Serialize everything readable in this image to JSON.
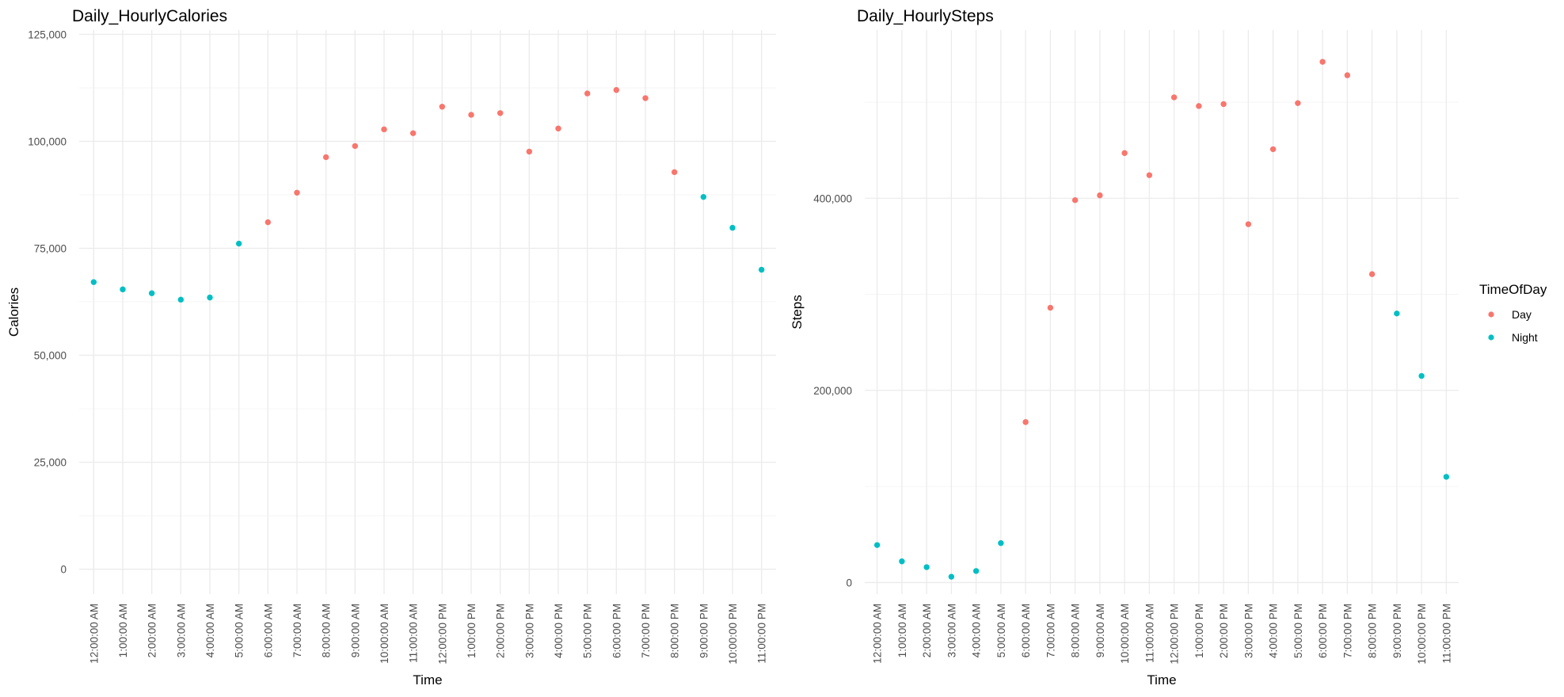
{
  "colors": {
    "Day": "#F8766D",
    "Night": "#00BFC4"
  },
  "legend": {
    "title": "TimeOfDay",
    "items": [
      {
        "label": "Day",
        "color": "#F8766D"
      },
      {
        "label": "Night",
        "color": "#00BFC4"
      }
    ]
  },
  "chart_data": [
    {
      "type": "scatter",
      "title": "Daily_HourlyCalories",
      "xlabel": "Time",
      "ylabel": "Calories",
      "categories": [
        "12:00:00 AM",
        "1:00:00 AM",
        "2:00:00 AM",
        "3:00:00 AM",
        "4:00:00 AM",
        "5:00:00 AM",
        "6:00:00 AM",
        "7:00:00 AM",
        "8:00:00 AM",
        "9:00:00 AM",
        "10:00:00 AM",
        "11:00:00 AM",
        "12:00:00 PM",
        "1:00:00 PM",
        "2:00:00 PM",
        "3:00:00 PM",
        "4:00:00 PM",
        "5:00:00 PM",
        "6:00:00 PM",
        "7:00:00 PM",
        "8:00:00 PM",
        "9:00:00 PM",
        "10:00:00 PM",
        "11:00:00 PM"
      ],
      "values": [
        67100,
        65400,
        64500,
        63000,
        63500,
        76100,
        81100,
        88000,
        96300,
        98900,
        102800,
        101900,
        108100,
        106200,
        106600,
        97600,
        103000,
        111200,
        112000,
        110100,
        92800,
        87000,
        79800,
        70000
      ],
      "groups": [
        "Night",
        "Night",
        "Night",
        "Night",
        "Night",
        "Night",
        "Day",
        "Day",
        "Day",
        "Day",
        "Day",
        "Day",
        "Day",
        "Day",
        "Day",
        "Day",
        "Day",
        "Day",
        "Day",
        "Day",
        "Day",
        "Night",
        "Night",
        "Night"
      ],
      "ylim": [
        -5800,
        126000
      ],
      "yticks": [
        0,
        25000,
        50000,
        75000,
        100000,
        125000
      ],
      "ytick_labels": [
        "0",
        "25,000",
        "50,000",
        "75,000",
        "100,000",
        "125,000"
      ],
      "grid": true,
      "legend": "none"
    },
    {
      "type": "scatter",
      "title": "Daily_HourlySteps",
      "xlabel": "Time",
      "ylabel": "Steps",
      "categories": [
        "12:00:00 AM",
        "1:00:00 AM",
        "2:00:00 AM",
        "3:00:00 AM",
        "4:00:00 AM",
        "5:00:00 AM",
        "6:00:00 AM",
        "7:00:00 AM",
        "8:00:00 AM",
        "9:00:00 AM",
        "10:00:00 AM",
        "11:00:00 AM",
        "12:00:00 PM",
        "1:00:00 PM",
        "2:00:00 PM",
        "3:00:00 PM",
        "4:00:00 PM",
        "5:00:00 PM",
        "6:00:00 PM",
        "7:00:00 PM",
        "8:00:00 PM",
        "9:00:00 PM",
        "10:00:00 PM",
        "11:00:00 PM"
      ],
      "values": [
        39000,
        22000,
        16000,
        6000,
        12000,
        41000,
        167000,
        286000,
        398000,
        403000,
        447000,
        424000,
        505000,
        496000,
        498000,
        373000,
        451000,
        499000,
        542000,
        528000,
        321000,
        280000,
        215000,
        110000
      ],
      "groups": [
        "Night",
        "Night",
        "Night",
        "Night",
        "Night",
        "Night",
        "Day",
        "Day",
        "Day",
        "Day",
        "Day",
        "Day",
        "Day",
        "Day",
        "Day",
        "Day",
        "Day",
        "Day",
        "Day",
        "Day",
        "Day",
        "Night",
        "Night",
        "Night"
      ],
      "ylim": [
        -12000,
        575000
      ],
      "yticks": [
        0,
        200000,
        400000
      ],
      "ytick_labels": [
        "0",
        "200,000",
        "400,000"
      ],
      "grid": true,
      "legend": "right"
    }
  ]
}
